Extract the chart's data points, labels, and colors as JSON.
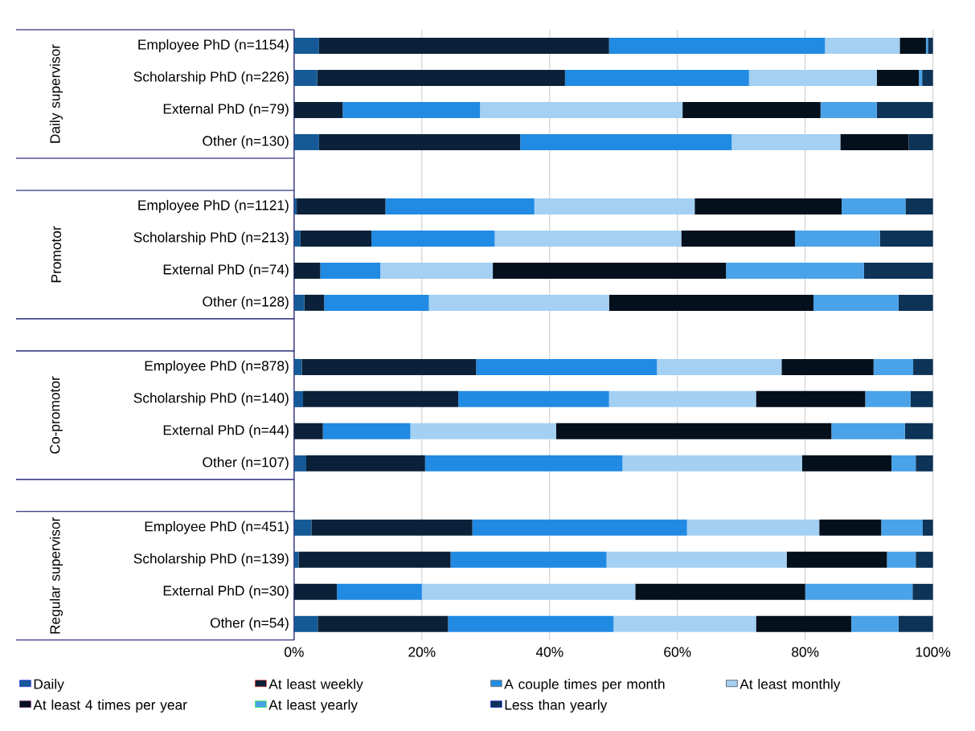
{
  "chart_data": {
    "type": "bar",
    "orientation": "horizontal",
    "stacked": true,
    "categories": [
      "Employee PhD (n=1154)",
      "Scholarship PhD (n=226)",
      "External PhD (n=79)",
      "Other (n=130)",
      null,
      "Employee PhD (n=1121)",
      "Scholarship PhD (n=213)",
      "External PhD (n=74)",
      "Other (n=128)",
      null,
      "Employee PhD (n=878)",
      "Scholarship PhD (n=140)",
      "External PhD (n=44)",
      "Other (n=107)",
      null,
      "Employee PhD (n=451)",
      "Scholarship PhD (n=139)",
      "External PhD (n=30)",
      "Other (n=54)"
    ],
    "series": [
      {
        "name": "Daily",
        "color": "#155a96",
        "values": [
          3.9,
          3.6,
          0,
          3.9,
          null,
          0.4,
          1.0,
          0,
          1.6,
          null,
          1.2,
          1.4,
          0,
          1.9,
          null,
          2.7,
          0.7,
          0,
          3.7
        ]
      },
      {
        "name": "At least weekly",
        "color": "#0a2139",
        "values": [
          45.4,
          38.8,
          7.6,
          31.5,
          null,
          13.9,
          11.1,
          4.1,
          3.1,
          null,
          27.3,
          24.3,
          4.5,
          18.6,
          null,
          25.2,
          23.8,
          6.7,
          20.4
        ]
      },
      {
        "name": "A couple times per month",
        "color": "#218ae3",
        "values": [
          33.8,
          28.8,
          21.5,
          33.1,
          null,
          23.3,
          19.3,
          9.4,
          16.4,
          null,
          28.3,
          23.6,
          13.7,
          30.9,
          null,
          33.6,
          24.4,
          13.3,
          25.9
        ]
      },
      {
        "name": "At least monthly",
        "color": "#a3d0f3",
        "values": [
          11.7,
          20.0,
          31.7,
          17.0,
          null,
          25.1,
          29.2,
          17.6,
          28.2,
          null,
          19.5,
          23.0,
          22.8,
          28.1,
          null,
          20.7,
          28.2,
          33.4,
          22.3
        ]
      },
      {
        "name": "At least 4 times per year",
        "color": "#04101c",
        "values": [
          4.1,
          6.6,
          21.6,
          10.7,
          null,
          23.0,
          17.8,
          36.5,
          32.0,
          null,
          14.4,
          17.1,
          43.1,
          14.0,
          null,
          9.7,
          15.7,
          26.6,
          14.9
        ]
      },
      {
        "name": "At least yearly",
        "color": "#4aa2e8",
        "values": [
          0.3,
          0.5,
          8.8,
          0,
          null,
          10.0,
          13.3,
          21.6,
          13.3,
          null,
          6.2,
          7.1,
          11.5,
          3.8,
          null,
          6.5,
          4.5,
          16.8,
          7.4
        ]
      },
      {
        "name": "Less than yearly",
        "color": "#0d3357",
        "values": [
          0.8,
          1.7,
          8.8,
          3.8,
          null,
          4.3,
          8.3,
          10.8,
          5.4,
          null,
          3.1,
          3.5,
          4.4,
          2.7,
          null,
          1.6,
          2.7,
          3.2,
          5.4
        ]
      }
    ],
    "xlim": [
      0,
      100
    ],
    "xticks": [
      {
        "value": 0,
        "label": "0%"
      },
      {
        "value": 20,
        "label": "20%"
      },
      {
        "value": 40,
        "label": "40%"
      },
      {
        "value": 60,
        "label": "60%"
      },
      {
        "value": 80,
        "label": "80%"
      },
      {
        "value": 100,
        "label": "100%"
      }
    ],
    "grid": "x",
    "legend": "bottom",
    "annotations": [
      "Daily supervisor",
      "Promotor",
      "Co-promotor",
      "Regular supervisor"
    ]
  }
}
